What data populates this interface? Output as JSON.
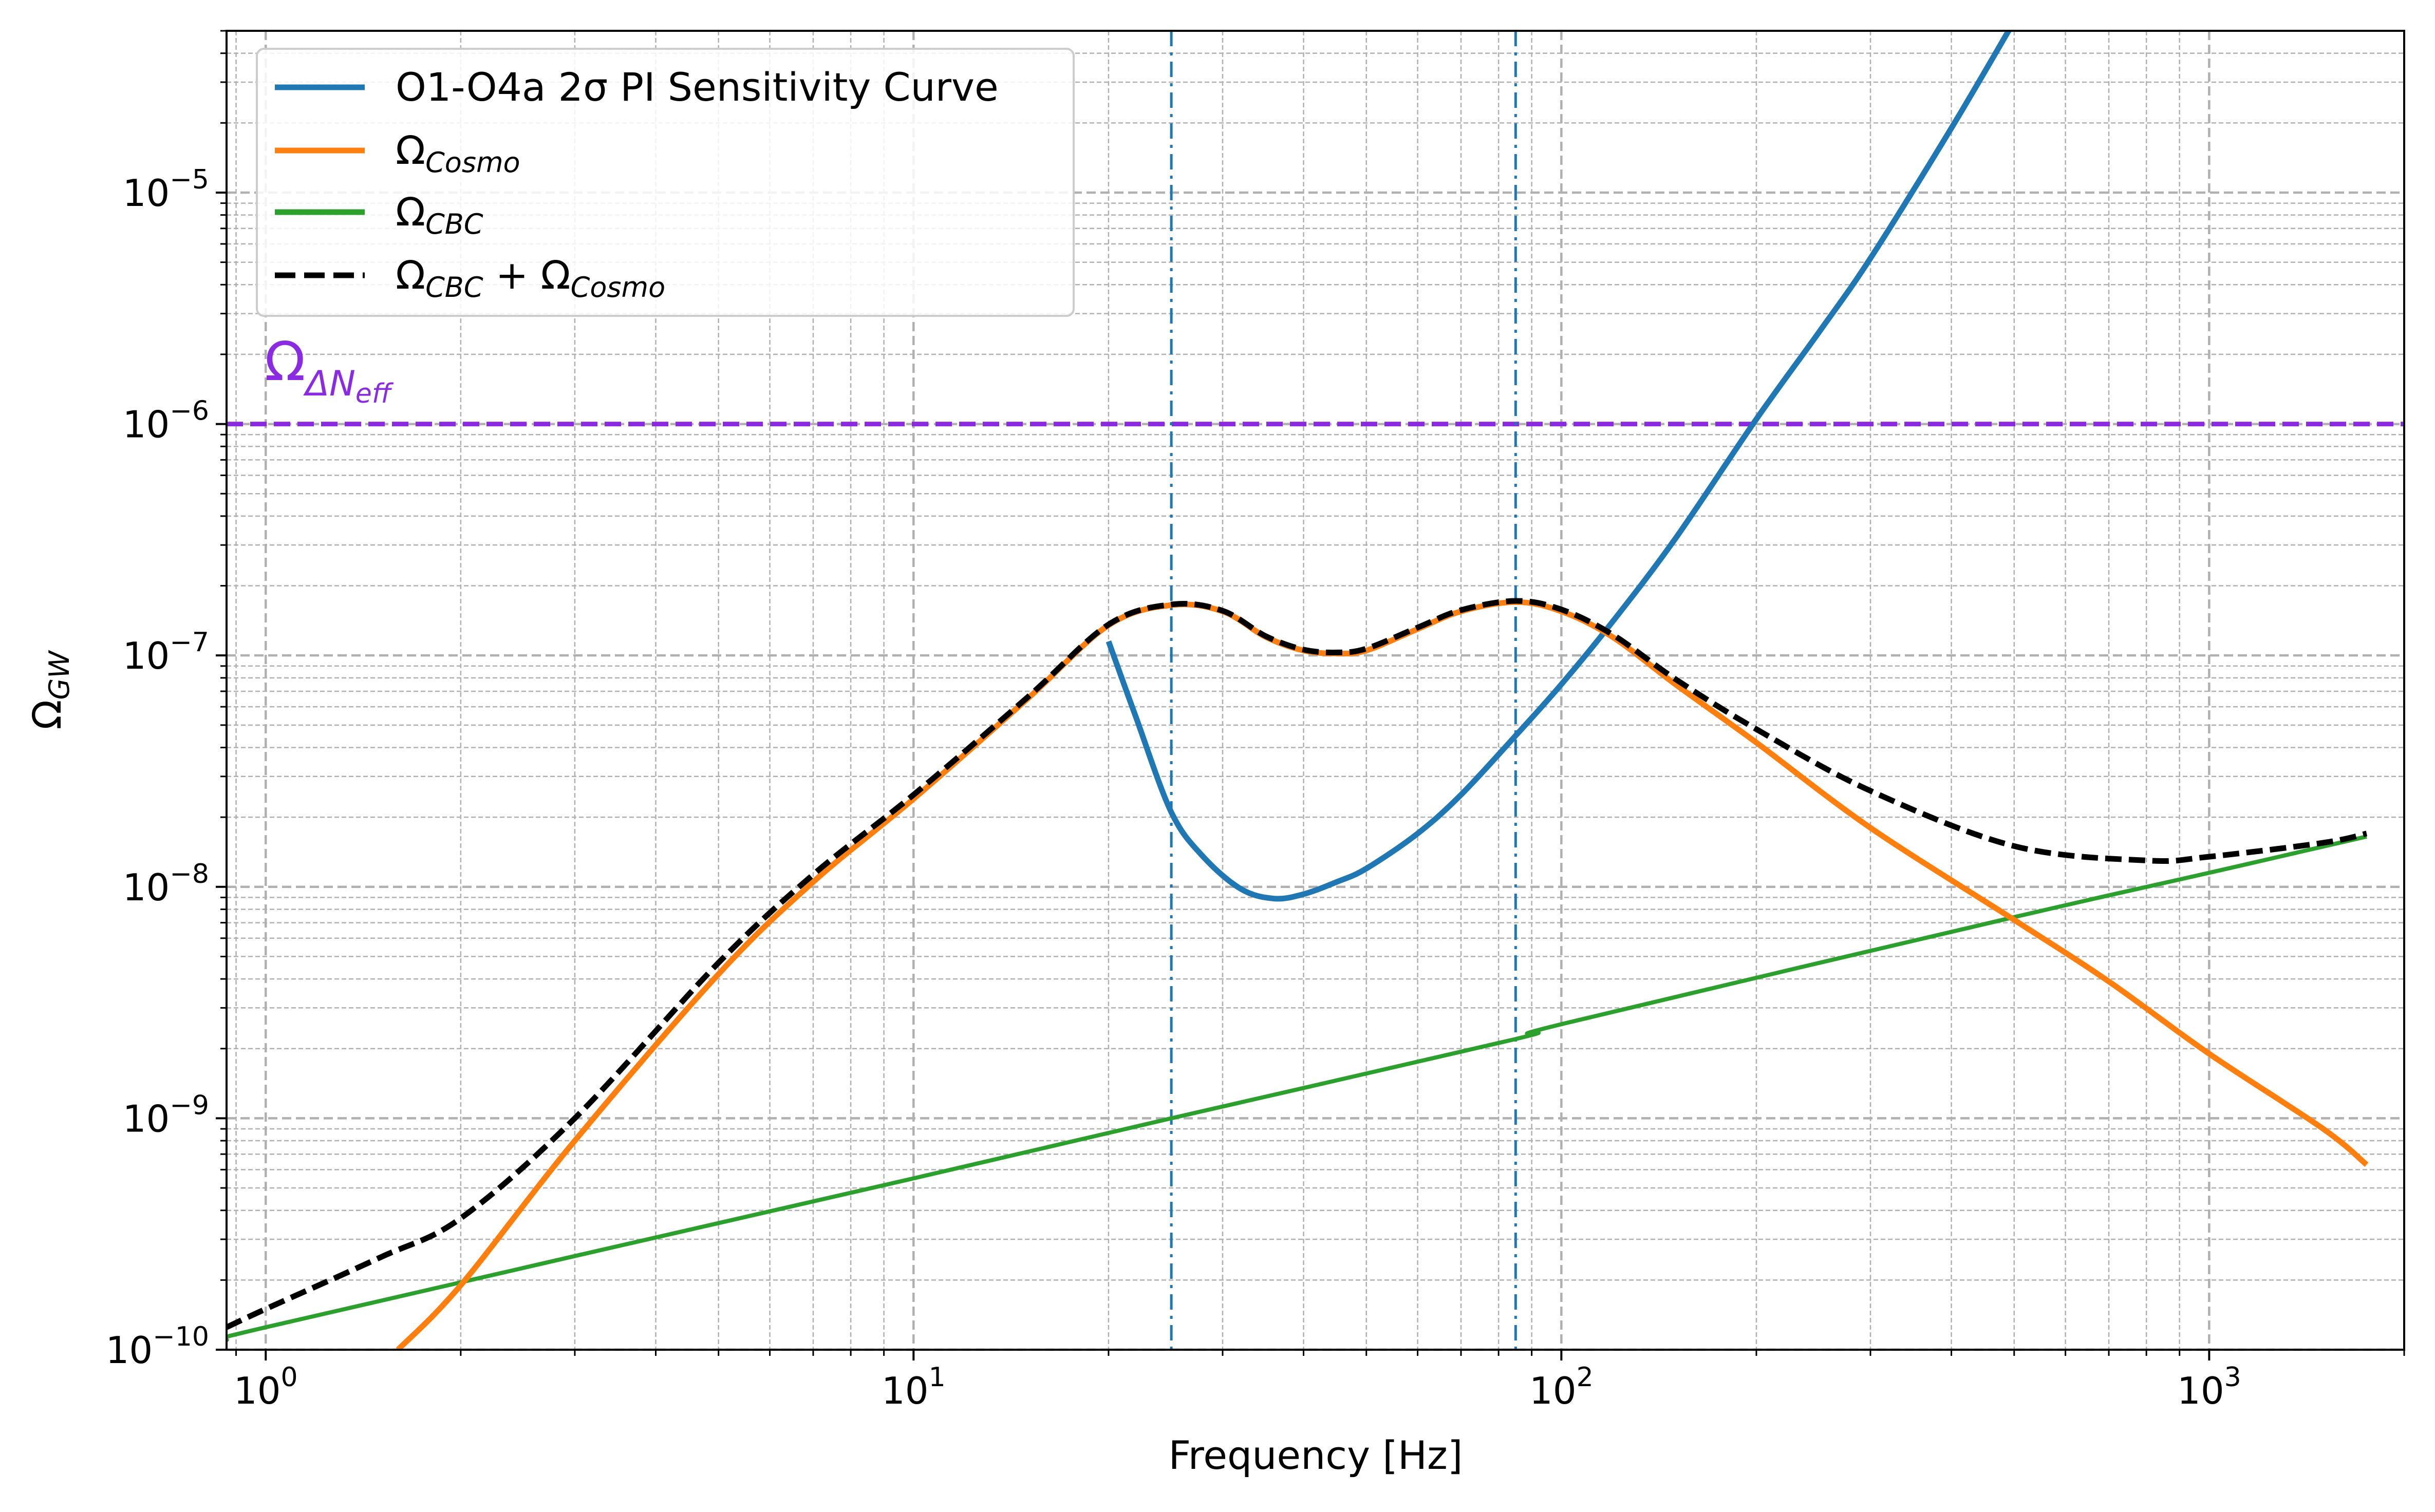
{
  "chart_data": {
    "type": "line",
    "title": "",
    "xlabel": "Frequency [Hz]",
    "ylabel": {
      "base": "Ω",
      "sub": "GW"
    },
    "xscale": "log",
    "yscale": "log",
    "xlim": [
      0.87,
      2000
    ],
    "ylim": [
      1e-10,
      5e-05
    ],
    "grid": true,
    "legend_position": "upper left",
    "x_ticks": [
      {
        "value": 1,
        "base": "10",
        "exp": "0"
      },
      {
        "value": 10,
        "base": "10",
        "exp": "1"
      },
      {
        "value": 100,
        "base": "10",
        "exp": "2"
      },
      {
        "value": 1000,
        "base": "10",
        "exp": "3"
      }
    ],
    "y_ticks": [
      {
        "value": 1e-10,
        "base": "10",
        "exp": "−10"
      },
      {
        "value": 1e-09,
        "base": "10",
        "exp": "−9"
      },
      {
        "value": 1e-08,
        "base": "10",
        "exp": "−8"
      },
      {
        "value": 1e-07,
        "base": "10",
        "exp": "−7"
      },
      {
        "value": 1e-06,
        "base": "10",
        "exp": "−6"
      },
      {
        "value": 1e-05,
        "base": "10",
        "exp": "−5"
      }
    ],
    "series": [
      {
        "name": "O1-O4a 2σ PI Sensitivity Curve",
        "key": "sensitivity",
        "color": "#1f77b4",
        "style": "solid",
        "x": [
          20,
          22,
          25,
          28,
          32,
          36,
          40,
          45,
          50,
          60,
          70,
          85,
          100,
          120,
          150,
          200,
          250,
          300,
          400,
          500
        ],
        "y": [
          1.15e-07,
          5.5e-08,
          2.1e-08,
          1.35e-08,
          9.8e-09,
          8.9e-09,
          9.3e-09,
          1.05e-08,
          1.2e-08,
          1.7e-08,
          2.5e-08,
          4.5e-08,
          7.5e-08,
          1.4e-07,
          3.2e-07,
          1.05e-06,
          2.5e-06,
          5.2e-06,
          1.9e-05,
          5.5e-05
        ]
      },
      {
        "name": "Ω_Cosmo",
        "legend_base": "Ω",
        "legend_sub": "Cosmo",
        "key": "cosmo",
        "color": "#ff7f0e",
        "style": "solid",
        "x": [
          1.6,
          2,
          3,
          5,
          7,
          10,
          15,
          20,
          25,
          30,
          35,
          40,
          45,
          50,
          60,
          70,
          85,
          100,
          120,
          150,
          200,
          300,
          500,
          700,
          1000,
          1500,
          1750
        ],
        "y": [
          1e-10,
          1.9e-10,
          8e-10,
          4.2e-09,
          1.05e-08,
          2.4e-08,
          6.5e-08,
          1.35e-07,
          1.65e-07,
          1.55e-07,
          1.2e-07,
          1.05e-07,
          1.02e-07,
          1.05e-07,
          1.3e-07,
          1.55e-07,
          1.7e-07,
          1.55e-07,
          1.2e-07,
          7.5e-08,
          4.2e-08,
          1.8e-08,
          7.2e-09,
          3.9e-09,
          1.9e-09,
          9e-10,
          6.3e-10
        ]
      },
      {
        "name": "Ω_CBC",
        "legend_base": "Ω",
        "legend_sub": "CBC",
        "key": "cbc",
        "color": "#2ca02c",
        "style": "solid",
        "x": [
          0.87,
          1,
          10,
          25,
          85,
          100,
          500,
          1000,
          1750
        ],
        "y": [
          1.1e-10,
          1.25e-10,
          5.5e-10,
          1e-09,
          2.2e-09,
          2.55e-09,
          7.4e-09,
          1.15e-08,
          1.65e-08
        ]
      },
      {
        "name": "Ω_CBC + Ω_Cosmo",
        "legend_parts": [
          "Ω",
          "CBC",
          " + Ω",
          "Cosmo"
        ],
        "key": "sum",
        "color": "#000000",
        "style": "dashed",
        "x": [
          0.87,
          1,
          1.5,
          2,
          3,
          5,
          7,
          10,
          15,
          20,
          25,
          30,
          35,
          40,
          45,
          50,
          60,
          70,
          85,
          100,
          120,
          150,
          200,
          300,
          500,
          800,
          1000,
          1500,
          1750
        ],
        "y": [
          1.25e-10,
          1.5e-10,
          2.5e-10,
          3.7e-10,
          1e-09,
          4.7e-09,
          1.13e-08,
          2.5e-08,
          6.6e-08,
          1.36e-07,
          1.66e-07,
          1.56e-07,
          1.21e-07,
          1.06e-07,
          1.03e-07,
          1.07e-07,
          1.32e-07,
          1.57e-07,
          1.72e-07,
          1.58e-07,
          1.23e-07,
          7.9e-08,
          4.8e-08,
          2.6e-08,
          1.5e-08,
          1.3e-08,
          1.35e-08,
          1.55e-08,
          1.7e-08
        ]
      }
    ],
    "reference_lines": [
      {
        "key": "neff",
        "orientation": "horizontal",
        "value": 1e-06,
        "color": "#8a2be2",
        "style": "dashed",
        "label_base": "Ω",
        "label_sub": "ΔN",
        "label_subsub": "eff"
      },
      {
        "key": "vline1",
        "orientation": "vertical",
        "value": 25,
        "color": "#1f77b4",
        "style": "dashdot"
      },
      {
        "key": "vline2",
        "orientation": "vertical",
        "value": 85,
        "color": "#1f77b4",
        "style": "dashdot"
      }
    ]
  }
}
